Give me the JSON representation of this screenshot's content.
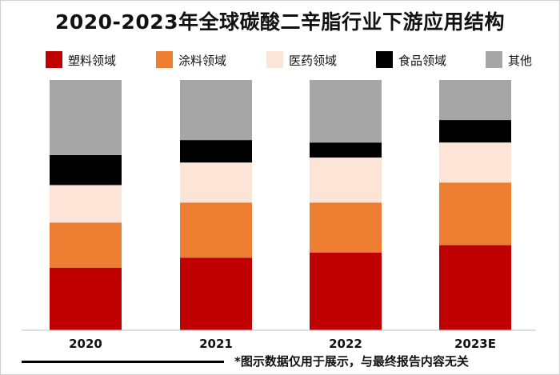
{
  "chart_data": {
    "type": "bar",
    "stacked": true,
    "normalized_percent": true,
    "title": "2020-2023年全球碳酸二辛脂行业下游应用结构",
    "categories": [
      "2020",
      "2021",
      "2022",
      "2023E"
    ],
    "series": [
      {
        "name": "塑料领域",
        "color": "#c00000",
        "values": [
          25,
          29,
          31,
          34
        ]
      },
      {
        "name": "涂料领域",
        "color": "#ed7d31",
        "values": [
          18,
          22,
          20,
          25
        ]
      },
      {
        "name": "医药领域",
        "color": "#fce4d6",
        "values": [
          15,
          16,
          18,
          16
        ]
      },
      {
        "name": "食品领域",
        "color": "#000000",
        "values": [
          12,
          9,
          6,
          9
        ]
      },
      {
        "name": "其他",
        "color": "#a6a6a6",
        "values": [
          30,
          24,
          25,
          16
        ]
      }
    ],
    "ylim": [
      0,
      100
    ],
    "grid": false,
    "legend_position": "top"
  },
  "footnote": "*图示数据仅用于展示，与最终报告内容无关"
}
